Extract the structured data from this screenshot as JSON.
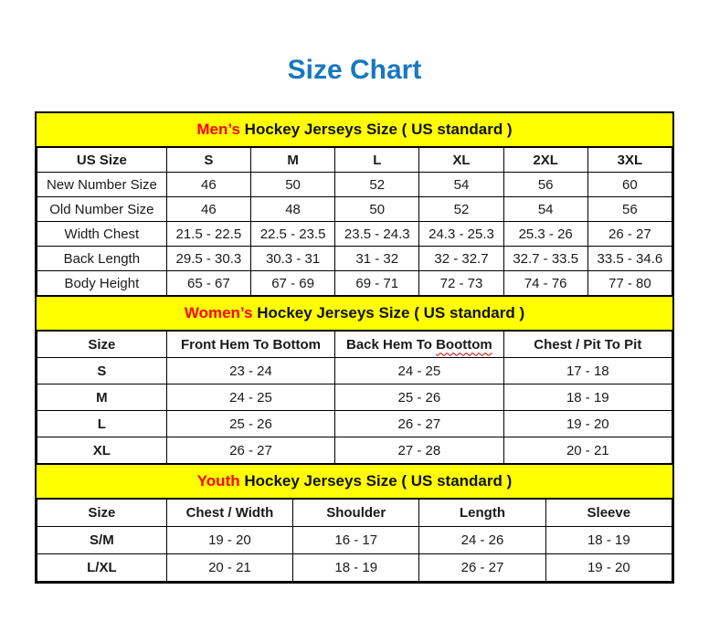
{
  "page": {
    "title": "Size Chart"
  },
  "colors": {
    "title_blue": "#1878be",
    "band_yellow": "#ffff00",
    "accent_red": "#ff0000",
    "border_black": "#000000",
    "squiggle_red": "#cc0000"
  },
  "chart_data": [
    {
      "type": "table",
      "section": "mens",
      "title_highlight": "Men’s",
      "title_rest": "Hockey Jerseys Size ( US standard )",
      "columns": [
        {
          "label": "US Size"
        },
        {
          "label": "S"
        },
        {
          "label": "M"
        },
        {
          "label": "L"
        },
        {
          "label": "XL"
        },
        {
          "label": "2XL"
        },
        {
          "label": "3XL"
        }
      ],
      "rows": [
        [
          "New Number Size",
          "46",
          "50",
          "52",
          "54",
          "56",
          "60"
        ],
        [
          "Old Number Size",
          "46",
          "48",
          "50",
          "52",
          "54",
          "56"
        ],
        [
          "Width Chest",
          "21.5 - 22.5",
          "22.5 - 23.5",
          "23.5 - 24.3",
          "24.3 - 25.3",
          "25.3 - 26",
          "26 - 27"
        ],
        [
          "Back Length",
          "29.5 - 30.3",
          "30.3 - 31",
          "31 - 32",
          "32 - 32.7",
          "32.7 - 33.5",
          "33.5 - 34.6"
        ],
        [
          "Body Height",
          "65 - 67",
          "67 - 69",
          "69 - 71",
          "72 - 73",
          "74 - 76",
          "77 - 80"
        ]
      ]
    },
    {
      "type": "table",
      "section": "womens",
      "title_highlight": "Women’s",
      "title_rest": "Hockey Jerseys Size ( US standard )",
      "columns": [
        {
          "label": "Size"
        },
        {
          "label": "Front Hem To Bottom"
        },
        {
          "label": "Back Hem To",
          "wavy": "Boottom"
        },
        {
          "label": "Chest / Pit To Pit"
        }
      ],
      "rows": [
        [
          "S",
          "23 - 24",
          "24 - 25",
          "17 - 18"
        ],
        [
          "M",
          "24 - 25",
          "25 - 26",
          "18 - 19"
        ],
        [
          "L",
          "25 - 26",
          "26 - 27",
          "19 - 20"
        ],
        [
          "XL",
          "26 - 27",
          "27 - 28",
          "20 - 21"
        ]
      ]
    },
    {
      "type": "table",
      "section": "youth",
      "title_highlight": "Youth",
      "title_rest": "Hockey Jerseys Size ( US standard )",
      "columns": [
        {
          "label": "Size"
        },
        {
          "label": "Chest / Width"
        },
        {
          "label": "Shoulder"
        },
        {
          "label": "Length"
        },
        {
          "label": "Sleeve"
        }
      ],
      "rows": [
        [
          "S/M",
          "19 - 20",
          "16 - 17",
          "24 - 26",
          "18 - 19"
        ],
        [
          "L/XL",
          "20 - 21",
          "18 - 19",
          "26 - 27",
          "19 - 20"
        ]
      ]
    }
  ]
}
